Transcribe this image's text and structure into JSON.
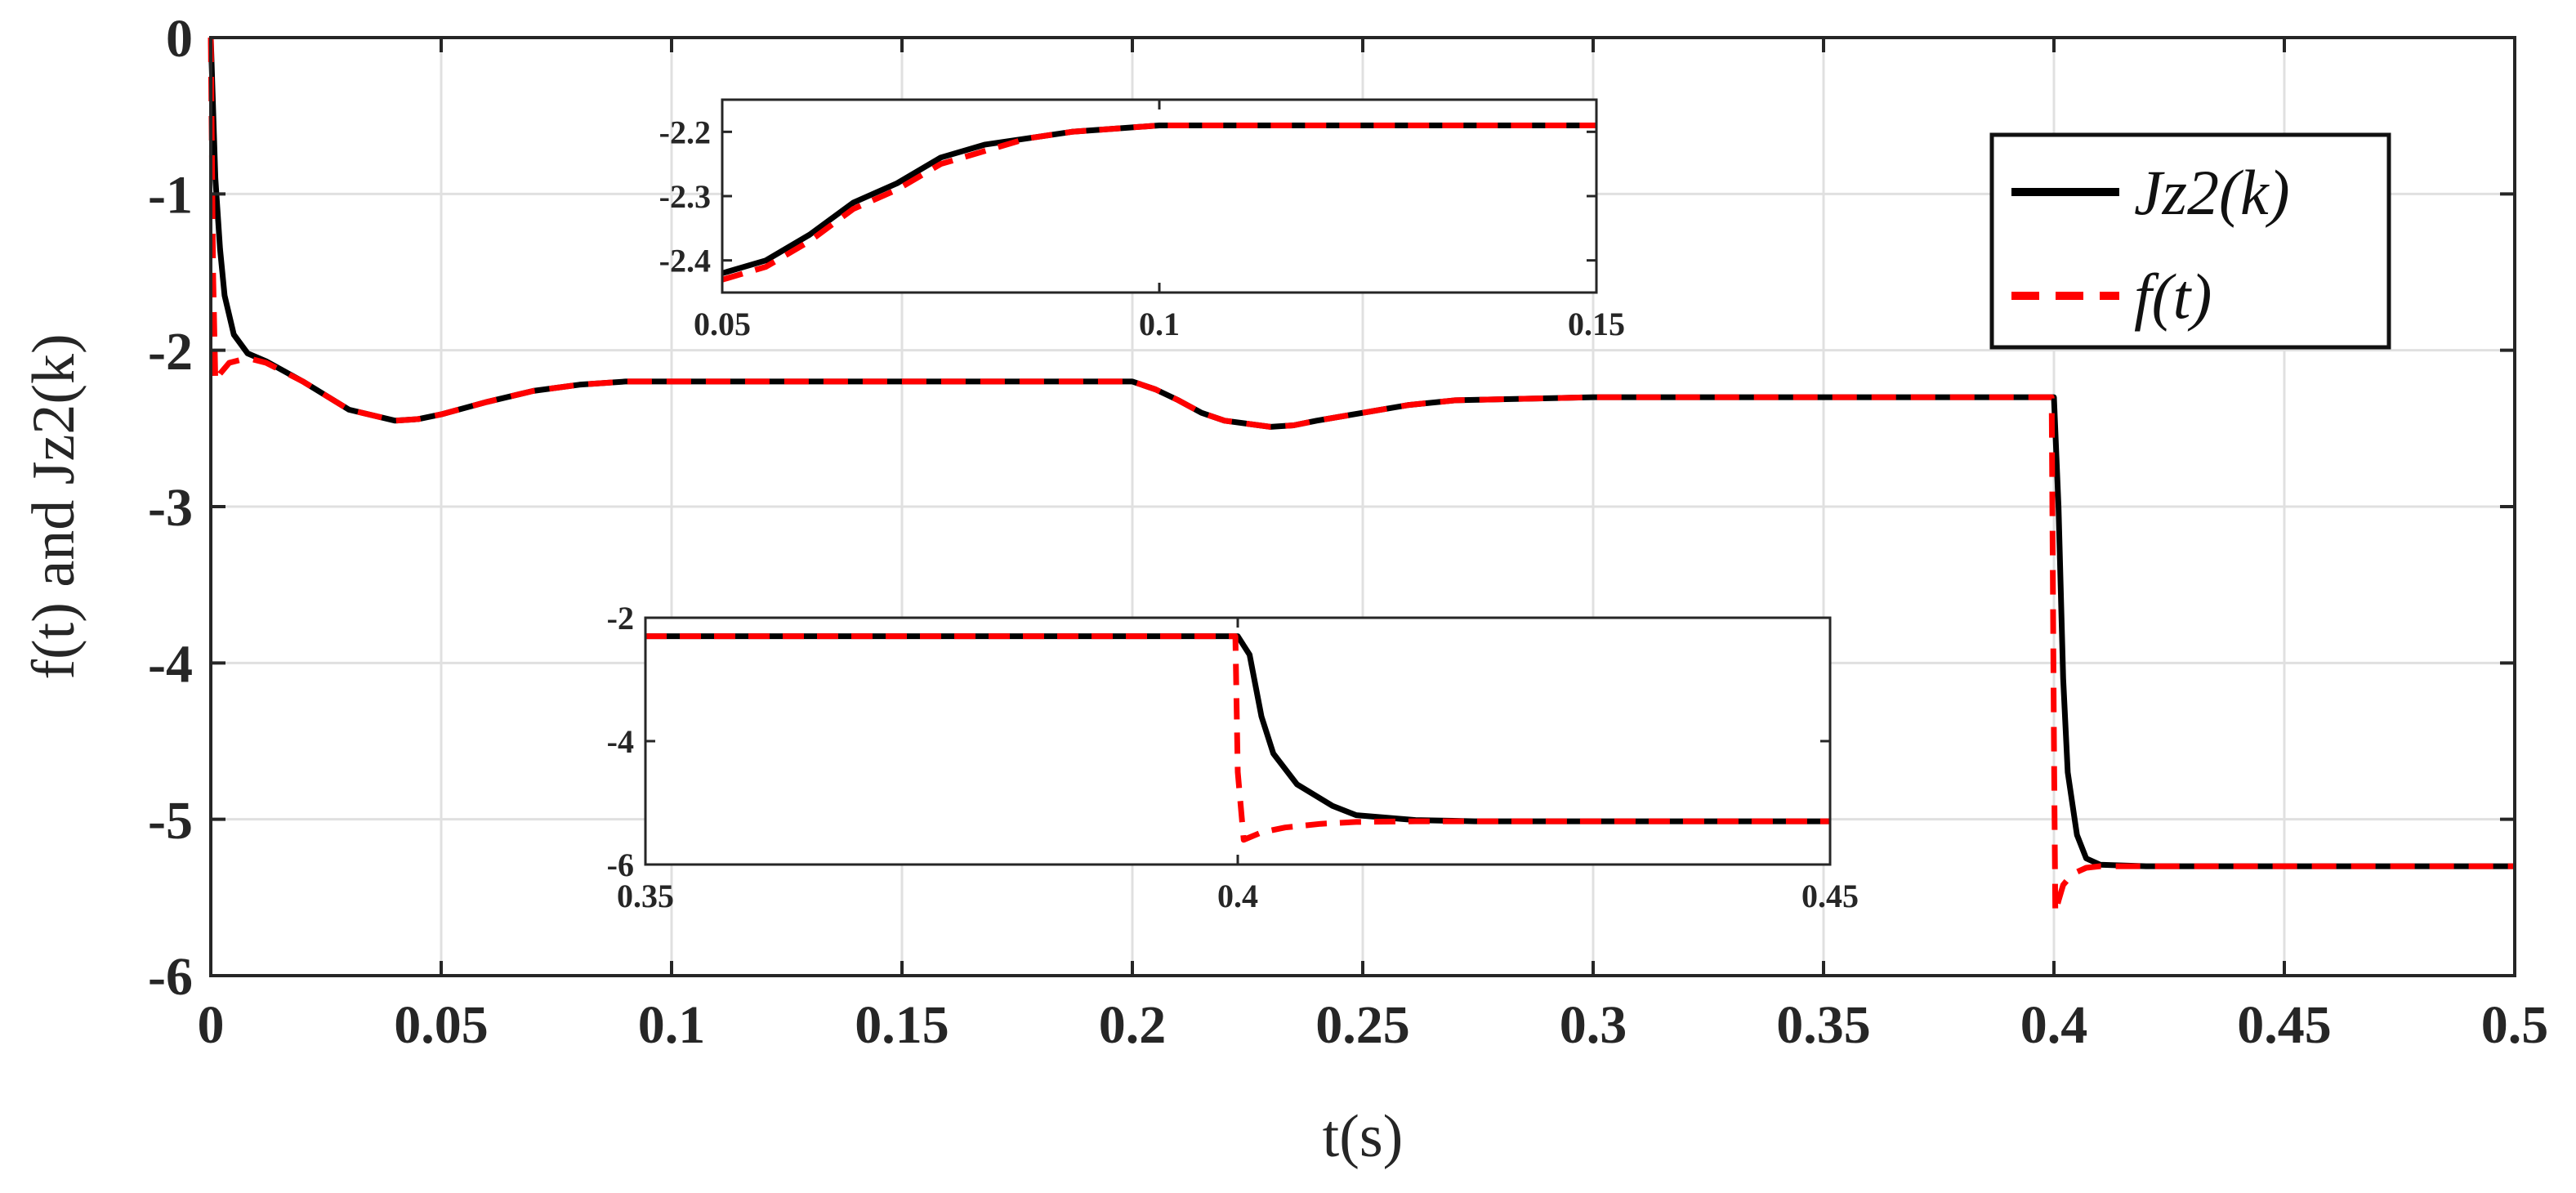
{
  "chart_data": [
    {
      "id": "main",
      "type": "line",
      "xlabel": "t(s)",
      "ylabel": "f(t) and Jz2(k)",
      "xlim": [
        0,
        0.5
      ],
      "ylim": [
        -6,
        0
      ],
      "xticks": [
        0,
        0.05,
        0.1,
        0.15,
        0.2,
        0.25,
        0.3,
        0.35,
        0.4,
        0.45,
        0.5
      ],
      "xtick_labels": [
        "0",
        "0.05",
        "0.1",
        "0.15",
        "0.2",
        "0.25",
        "0.3",
        "0.35",
        "0.4",
        "0.45",
        "0.5"
      ],
      "yticks": [
        0,
        -1,
        -2,
        -3,
        -4,
        -5,
        -6
      ],
      "ytick_labels": [
        "0",
        "-1",
        "-2",
        "-3",
        "-4",
        "-5",
        "-6"
      ],
      "grid": true,
      "legend_position": "top-right",
      "series": [
        {
          "name": "Jz2(k)",
          "color": "#000000",
          "style": "solid",
          "x": [
            0,
            0.001,
            0.002,
            0.003,
            0.005,
            0.008,
            0.012,
            0.02,
            0.03,
            0.04,
            0.045,
            0.05,
            0.06,
            0.07,
            0.08,
            0.09,
            0.1,
            0.12,
            0.15,
            0.18,
            0.2,
            0.205,
            0.21,
            0.215,
            0.22,
            0.225,
            0.23,
            0.235,
            0.24,
            0.25,
            0.26,
            0.27,
            0.3,
            0.35,
            0.399,
            0.4,
            0.401,
            0.402,
            0.403,
            0.405,
            0.407,
            0.41,
            0.42,
            0.45,
            0.5
          ],
          "y": [
            0,
            -0.9,
            -1.35,
            -1.65,
            -1.9,
            -2.02,
            -2.07,
            -2.2,
            -2.38,
            -2.45,
            -2.44,
            -2.41,
            -2.33,
            -2.26,
            -2.22,
            -2.2,
            -2.2,
            -2.2,
            -2.2,
            -2.2,
            -2.2,
            -2.25,
            -2.32,
            -2.4,
            -2.45,
            -2.47,
            -2.49,
            -2.48,
            -2.45,
            -2.4,
            -2.35,
            -2.32,
            -2.3,
            -2.3,
            -2.3,
            -2.3,
            -3.0,
            -4.1,
            -4.7,
            -5.1,
            -5.25,
            -5.29,
            -5.3,
            -5.3,
            -5.3
          ]
        },
        {
          "name": "f(t)",
          "color": "#ff0000",
          "style": "dashed",
          "x": [
            0,
            0.0005,
            0.001,
            0.002,
            0.004,
            0.008,
            0.012,
            0.02,
            0.03,
            0.04,
            0.045,
            0.05,
            0.06,
            0.07,
            0.08,
            0.09,
            0.1,
            0.12,
            0.15,
            0.18,
            0.2,
            0.205,
            0.21,
            0.215,
            0.22,
            0.225,
            0.23,
            0.235,
            0.24,
            0.25,
            0.26,
            0.27,
            0.3,
            0.35,
            0.3995,
            0.4,
            0.4003,
            0.401,
            0.402,
            0.404,
            0.407,
            0.41,
            0.42,
            0.45,
            0.5
          ],
          "y": [
            0,
            -1.5,
            -2.2,
            -2.15,
            -2.08,
            -2.05,
            -2.08,
            -2.2,
            -2.38,
            -2.45,
            -2.44,
            -2.41,
            -2.33,
            -2.26,
            -2.22,
            -2.2,
            -2.2,
            -2.2,
            -2.2,
            -2.2,
            -2.2,
            -2.25,
            -2.32,
            -2.4,
            -2.45,
            -2.47,
            -2.49,
            -2.48,
            -2.45,
            -2.4,
            -2.35,
            -2.32,
            -2.3,
            -2.3,
            -2.3,
            -4.5,
            -5.6,
            -5.52,
            -5.42,
            -5.35,
            -5.31,
            -5.3,
            -5.3,
            -5.3,
            -5.3
          ]
        }
      ]
    },
    {
      "id": "inset_top",
      "type": "line",
      "xlim": [
        0.05,
        0.15
      ],
      "ylim": [
        -2.45,
        -2.15
      ],
      "xticks": [
        0.05,
        0.1,
        0.15
      ],
      "xtick_labels": [
        "0.05",
        "0.1",
        "0.15"
      ],
      "yticks": [
        -2.2,
        -2.3,
        -2.4
      ],
      "ytick_labels": [
        "-2.2",
        "-2.3",
        "-2.4"
      ],
      "grid": false,
      "series": [
        {
          "name": "Jz2(k)",
          "color": "#000000",
          "style": "solid",
          "x": [
            0.05,
            0.055,
            0.06,
            0.065,
            0.07,
            0.075,
            0.08,
            0.085,
            0.09,
            0.095,
            0.1,
            0.11,
            0.12,
            0.13,
            0.14,
            0.15
          ],
          "y": [
            -2.42,
            -2.4,
            -2.36,
            -2.31,
            -2.28,
            -2.24,
            -2.22,
            -2.21,
            -2.2,
            -2.195,
            -2.19,
            -2.19,
            -2.19,
            -2.19,
            -2.19,
            -2.19
          ]
        },
        {
          "name": "f(t)",
          "color": "#ff0000",
          "style": "dashed",
          "x": [
            0.05,
            0.055,
            0.06,
            0.065,
            0.07,
            0.075,
            0.08,
            0.085,
            0.09,
            0.095,
            0.1,
            0.11,
            0.12,
            0.13,
            0.14,
            0.15
          ],
          "y": [
            -2.43,
            -2.41,
            -2.37,
            -2.32,
            -2.29,
            -2.25,
            -2.23,
            -2.21,
            -2.2,
            -2.195,
            -2.19,
            -2.19,
            -2.19,
            -2.19,
            -2.19,
            -2.19
          ]
        }
      ]
    },
    {
      "id": "inset_bottom",
      "type": "line",
      "xlim": [
        0.35,
        0.45
      ],
      "ylim": [
        -6,
        -2
      ],
      "xticks": [
        0.35,
        0.4,
        0.45
      ],
      "xtick_labels": [
        "0.35",
        "0.4",
        "0.45"
      ],
      "yticks": [
        -2,
        -4,
        -6
      ],
      "ytick_labels": [
        "-2",
        "-4",
        "-6"
      ],
      "grid": false,
      "series": [
        {
          "name": "Jz2(k)",
          "color": "#000000",
          "style": "solid",
          "x": [
            0.35,
            0.38,
            0.4,
            0.401,
            0.402,
            0.403,
            0.405,
            0.408,
            0.41,
            0.415,
            0.42,
            0.45
          ],
          "y": [
            -2.3,
            -2.3,
            -2.3,
            -2.6,
            -3.6,
            -4.2,
            -4.7,
            -5.05,
            -5.2,
            -5.28,
            -5.3,
            -5.3
          ]
        },
        {
          "name": "f(t)",
          "color": "#ff0000",
          "style": "dashed",
          "x": [
            0.35,
            0.38,
            0.3998,
            0.4,
            0.4005,
            0.402,
            0.404,
            0.407,
            0.41,
            0.415,
            0.42,
            0.45
          ],
          "y": [
            -2.3,
            -2.3,
            -2.3,
            -4.5,
            -5.6,
            -5.48,
            -5.4,
            -5.34,
            -5.31,
            -5.3,
            -5.3,
            -5.3
          ]
        }
      ]
    }
  ]
}
